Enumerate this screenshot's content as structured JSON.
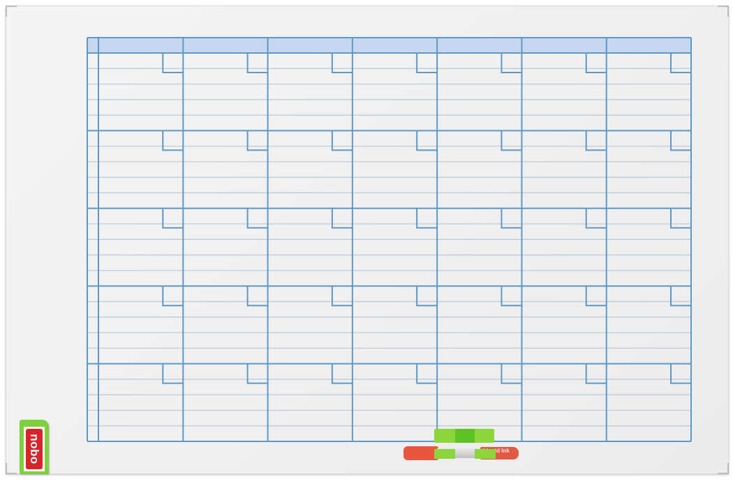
{
  "brand": "nobo",
  "marker": {
    "label": "Liquid Ink",
    "color": "#e25a43"
  },
  "colors": {
    "grid_line": "#5f98c4",
    "ruled_line": "#b9c8d6",
    "header_fill": "#c5d8f0",
    "board": "#f0f0f0",
    "accent_green": "#7fd13b",
    "logo_red": "#d8232a"
  }
}
